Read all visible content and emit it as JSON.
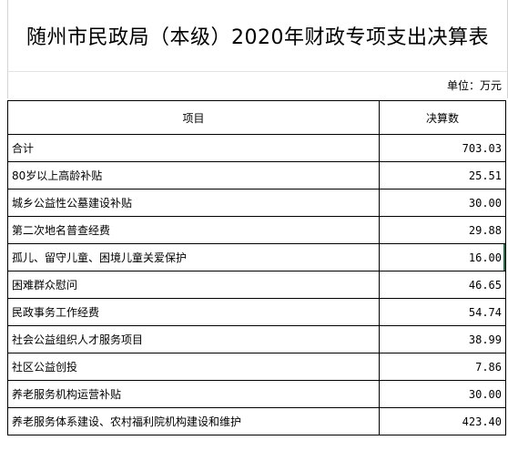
{
  "sheet": {
    "title": "随州市民政局（本级）2020年财政专项支出决算表",
    "unit": "单位：万元",
    "headers": {
      "item": "项目",
      "amount": "决算数"
    },
    "rows": [
      {
        "item": "合计",
        "amount": "703.03"
      },
      {
        "item": "80岁以上高龄补贴",
        "amount": "25.51"
      },
      {
        "item": "城乡公益性公墓建设补贴",
        "amount": "30.00"
      },
      {
        "item": "第二次地名普查经费",
        "amount": "29.88"
      },
      {
        "item": "孤儿、留守儿童、困境儿童关爱保护",
        "amount": "16.00"
      },
      {
        "item": "困难群众慰问",
        "amount": "46.65"
      },
      {
        "item": "民政事务工作经费",
        "amount": "54.74"
      },
      {
        "item": "社会公益组织人才服务项目",
        "amount": "38.99"
      },
      {
        "item": "社区公益创投",
        "amount": "7.86"
      },
      {
        "item": "养老服务机构运营补贴",
        "amount": "30.00"
      },
      {
        "item": "养老服务体系建设、农村福利院机构建设和维护",
        "amount": "423.40"
      }
    ]
  }
}
